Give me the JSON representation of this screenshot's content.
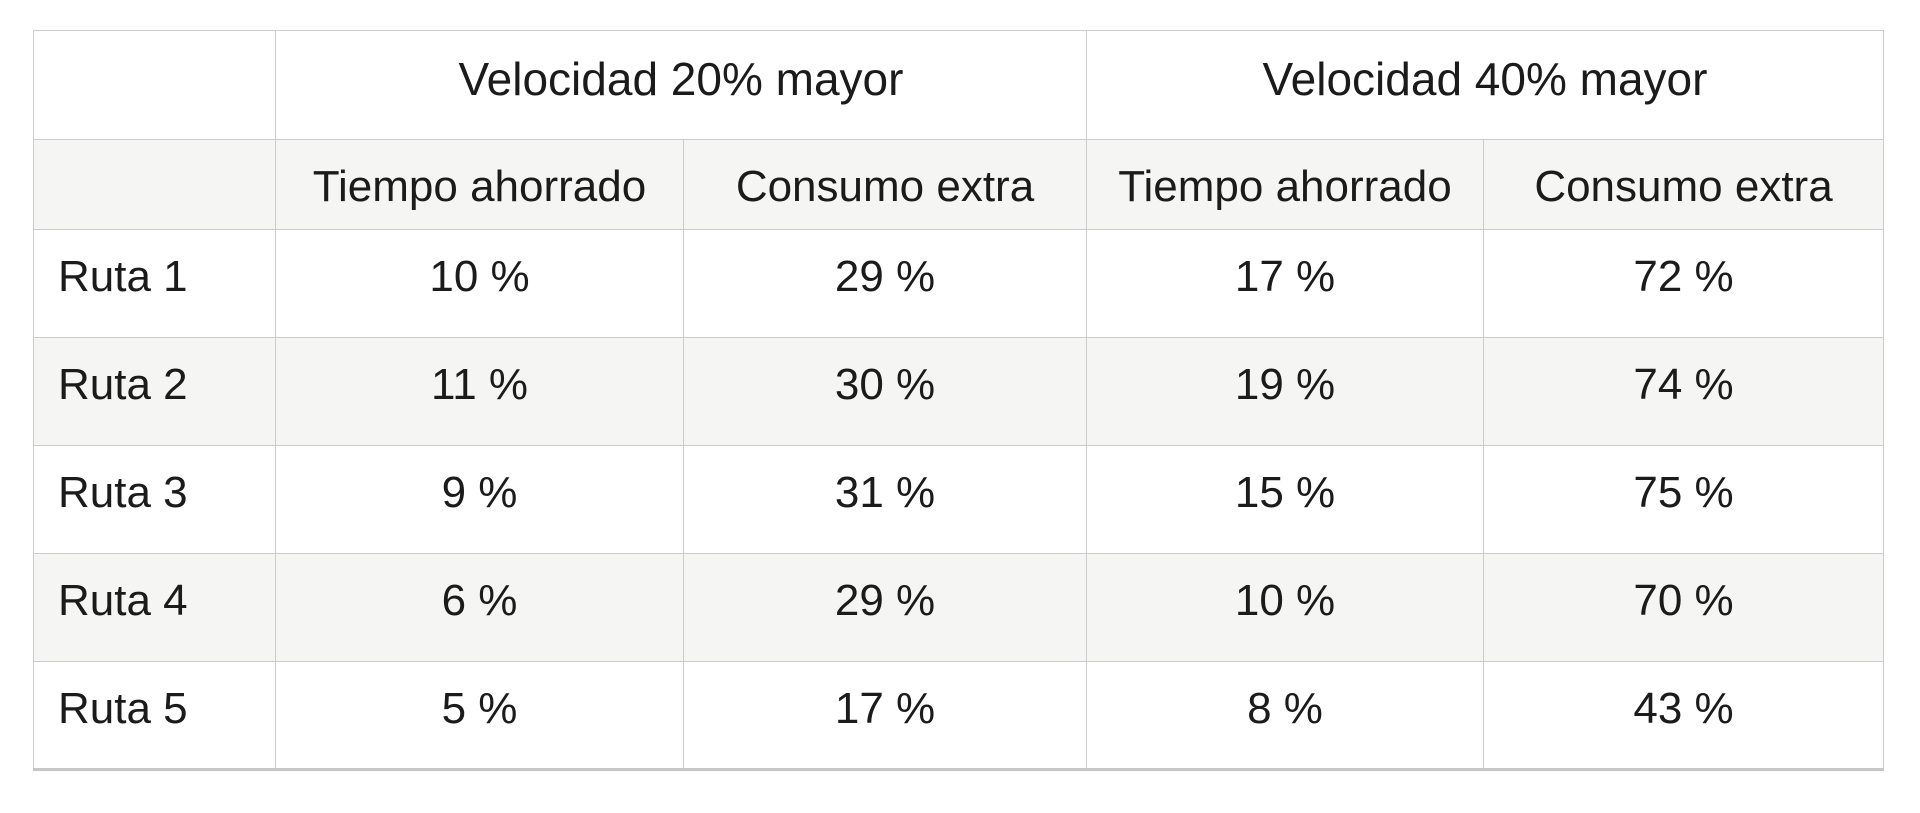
{
  "colors": {
    "border": "#cccccc",
    "bottom_border": "#c6c6c6",
    "alt_row_background": "#f5f5f3",
    "text": "#1b1b1b",
    "page_background": "#ffffff"
  },
  "table": {
    "corner_top": "",
    "corner_sub": "",
    "col_groups": [
      {
        "label": "Velocidad 20% mayor"
      },
      {
        "label": "Velocidad 40% mayor"
      }
    ],
    "sub_headers": [
      "Tiempo ahorrado",
      "Consumo extra",
      "Tiempo ahorrado",
      "Consumo extra"
    ],
    "rows": [
      {
        "label": "Ruta 1",
        "values": [
          "10 %",
          "29 %",
          "17 %",
          "72 %"
        ]
      },
      {
        "label": "Ruta 2",
        "values": [
          "11 %",
          "30 %",
          "19 %",
          "74 %"
        ]
      },
      {
        "label": "Ruta 3",
        "values": [
          "9 %",
          "31 %",
          "15 %",
          "75 %"
        ]
      },
      {
        "label": "Ruta 4",
        "values": [
          "6 %",
          "29 %",
          "10 %",
          "70 %"
        ]
      },
      {
        "label": "Ruta 5",
        "values": [
          "5 %",
          "17 %",
          "8 %",
          "43 %"
        ]
      }
    ]
  },
  "chart_data": {
    "type": "table",
    "column_groups": [
      {
        "name": "Velocidad 20% mayor",
        "columns": [
          "Tiempo ahorrado",
          "Consumo extra"
        ]
      },
      {
        "name": "Velocidad 40% mayor",
        "columns": [
          "Tiempo ahorrado",
          "Consumo extra"
        ]
      }
    ],
    "row_labels": [
      "Ruta 1",
      "Ruta 2",
      "Ruta 3",
      "Ruta 4",
      "Ruta 5"
    ],
    "values_percent": [
      [
        10,
        29,
        17,
        72
      ],
      [
        11,
        30,
        19,
        74
      ],
      [
        9,
        31,
        15,
        75
      ],
      [
        6,
        29,
        10,
        70
      ],
      [
        5,
        17,
        8,
        43
      ]
    ],
    "unit": "%"
  }
}
